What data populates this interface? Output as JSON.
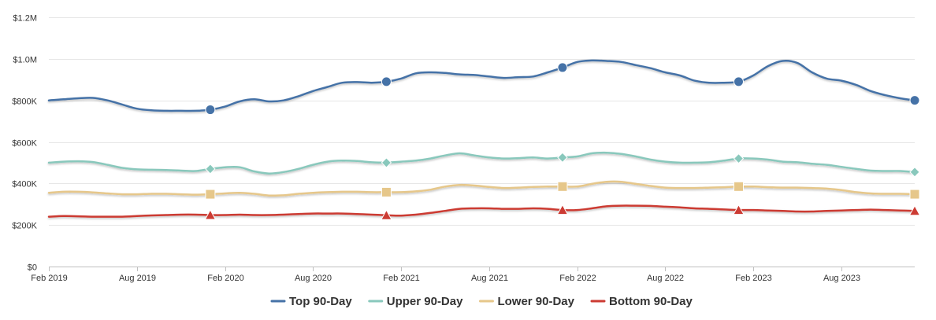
{
  "chart_data": {
    "type": "line",
    "title": "",
    "xlabel": "",
    "ylabel": "",
    "ylim": [
      0,
      1200000
    ],
    "y_ticks": [
      0,
      200000,
      400000,
      600000,
      800000,
      1000000,
      1200000
    ],
    "y_tick_labels": [
      "$0",
      "$200K",
      "$400K",
      "$600K",
      "$800K",
      "$1.0M",
      "$1.2M"
    ],
    "x_ticks": [
      "2019-02",
      "2019-08",
      "2020-02",
      "2020-08",
      "2021-02",
      "2021-08",
      "2022-02",
      "2022-08",
      "2023-02",
      "2023-08"
    ],
    "x_tick_labels": [
      "Feb 2019",
      "Aug 2019",
      "Feb 2020",
      "Aug 2020",
      "Feb 2021",
      "Aug 2021",
      "Feb 2022",
      "Aug 2022",
      "Feb 2023",
      "Aug 2023"
    ],
    "x_range": [
      "2019-02",
      "2024-01"
    ],
    "grid": "horizontal",
    "legend_position": "bottom",
    "series": [
      {
        "name": "Top 90-Day",
        "color": "#4572a7",
        "marker": "circle",
        "markers_at": [
          "2020-01",
          "2021-01",
          "2022-01",
          "2023-01",
          "2024-01"
        ],
        "x": [
          "2019-02",
          "2019-03",
          "2019-04",
          "2019-05",
          "2019-06",
          "2019-07",
          "2019-08",
          "2019-09",
          "2019-10",
          "2019-11",
          "2019-12",
          "2020-01",
          "2020-02",
          "2020-03",
          "2020-04",
          "2020-05",
          "2020-06",
          "2020-07",
          "2020-08",
          "2020-09",
          "2020-10",
          "2020-11",
          "2020-12",
          "2021-01",
          "2021-02",
          "2021-03",
          "2021-04",
          "2021-05",
          "2021-06",
          "2021-07",
          "2021-08",
          "2021-09",
          "2021-10",
          "2021-11",
          "2021-12",
          "2022-01",
          "2022-02",
          "2022-03",
          "2022-04",
          "2022-05",
          "2022-06",
          "2022-07",
          "2022-08",
          "2022-09",
          "2022-10",
          "2022-11",
          "2022-12",
          "2023-01",
          "2023-02",
          "2023-03",
          "2023-04",
          "2023-05",
          "2023-06",
          "2023-07",
          "2023-08",
          "2023-09",
          "2023-10",
          "2023-11",
          "2023-12",
          "2024-01"
        ],
        "values": [
          800000,
          805000,
          810000,
          812000,
          800000,
          780000,
          760000,
          752000,
          750000,
          750000,
          750000,
          755000,
          770000,
          795000,
          805000,
          795000,
          800000,
          820000,
          845000,
          865000,
          885000,
          888000,
          885000,
          890000,
          905000,
          930000,
          935000,
          932000,
          925000,
          922000,
          915000,
          908000,
          912000,
          915000,
          935000,
          958000,
          985000,
          992000,
          990000,
          985000,
          970000,
          955000,
          935000,
          920000,
          895000,
          885000,
          885000,
          890000,
          920000,
          965000,
          990000,
          980000,
          935000,
          905000,
          895000,
          875000,
          845000,
          825000,
          810000,
          800000
        ]
      },
      {
        "name": "Upper 90-Day",
        "color": "#89c8bc",
        "marker": "diamond",
        "markers_at": [
          "2020-01",
          "2021-01",
          "2022-01",
          "2023-01",
          "2024-01"
        ],
        "x": [
          "2019-02",
          "2019-03",
          "2019-04",
          "2019-05",
          "2019-06",
          "2019-07",
          "2019-08",
          "2019-09",
          "2019-10",
          "2019-11",
          "2019-12",
          "2020-01",
          "2020-02",
          "2020-03",
          "2020-04",
          "2020-05",
          "2020-06",
          "2020-07",
          "2020-08",
          "2020-09",
          "2020-10",
          "2020-11",
          "2020-12",
          "2021-01",
          "2021-02",
          "2021-03",
          "2021-04",
          "2021-05",
          "2021-06",
          "2021-07",
          "2021-08",
          "2021-09",
          "2021-10",
          "2021-11",
          "2021-12",
          "2022-01",
          "2022-02",
          "2022-03",
          "2022-04",
          "2022-05",
          "2022-06",
          "2022-07",
          "2022-08",
          "2022-09",
          "2022-10",
          "2022-11",
          "2022-12",
          "2023-01",
          "2023-02",
          "2023-03",
          "2023-04",
          "2023-05",
          "2023-06",
          "2023-07",
          "2023-08",
          "2023-09",
          "2023-10",
          "2023-11",
          "2023-12",
          "2024-01"
        ],
        "values": [
          500000,
          505000,
          507000,
          503000,
          490000,
          475000,
          468000,
          466000,
          465000,
          462000,
          460000,
          470000,
          478000,
          478000,
          458000,
          448000,
          455000,
          470000,
          490000,
          505000,
          510000,
          508000,
          502000,
          500000,
          505000,
          510000,
          520000,
          535000,
          545000,
          535000,
          525000,
          520000,
          522000,
          525000,
          520000,
          525000,
          530000,
          545000,
          548000,
          542000,
          530000,
          515000,
          505000,
          500000,
          500000,
          502000,
          510000,
          520000,
          520000,
          515000,
          505000,
          502000,
          495000,
          490000,
          480000,
          470000,
          462000,
          460000,
          460000,
          455000
        ]
      },
      {
        "name": "Lower 90-Day",
        "color": "#e6c78a",
        "marker": "square",
        "markers_at": [
          "2020-01",
          "2021-01",
          "2022-01",
          "2023-01",
          "2024-01"
        ],
        "x": [
          "2019-02",
          "2019-03",
          "2019-04",
          "2019-05",
          "2019-06",
          "2019-07",
          "2019-08",
          "2019-09",
          "2019-10",
          "2019-11",
          "2019-12",
          "2020-01",
          "2020-02",
          "2020-03",
          "2020-04",
          "2020-05",
          "2020-06",
          "2020-07",
          "2020-08",
          "2020-09",
          "2020-10",
          "2020-11",
          "2020-12",
          "2021-01",
          "2021-02",
          "2021-03",
          "2021-04",
          "2021-05",
          "2021-06",
          "2021-07",
          "2021-08",
          "2021-09",
          "2021-10",
          "2021-11",
          "2021-12",
          "2022-01",
          "2022-02",
          "2022-03",
          "2022-04",
          "2022-05",
          "2022-06",
          "2022-07",
          "2022-08",
          "2022-09",
          "2022-10",
          "2022-11",
          "2022-12",
          "2023-01",
          "2023-02",
          "2023-03",
          "2023-04",
          "2023-05",
          "2023-06",
          "2023-07",
          "2023-08",
          "2023-09",
          "2023-10",
          "2023-11",
          "2023-12",
          "2024-01"
        ],
        "values": [
          355000,
          360000,
          360000,
          357000,
          352000,
          348000,
          348000,
          350000,
          350000,
          348000,
          346000,
          348000,
          352000,
          355000,
          350000,
          342000,
          343000,
          350000,
          355000,
          358000,
          360000,
          360000,
          358000,
          358000,
          358000,
          362000,
          370000,
          385000,
          393000,
          390000,
          383000,
          378000,
          380000,
          383000,
          385000,
          385000,
          385000,
          398000,
          408000,
          408000,
          398000,
          388000,
          380000,
          378000,
          378000,
          380000,
          382000,
          385000,
          385000,
          382000,
          380000,
          380000,
          378000,
          375000,
          368000,
          358000,
          352000,
          350000,
          350000,
          348000
        ]
      },
      {
        "name": "Bottom 90-Day",
        "color": "#cc3b33",
        "marker": "triangle",
        "markers_at": [
          "2020-01",
          "2021-01",
          "2022-01",
          "2023-01",
          "2024-01"
        ],
        "x": [
          "2019-02",
          "2019-03",
          "2019-04",
          "2019-05",
          "2019-06",
          "2019-07",
          "2019-08",
          "2019-09",
          "2019-10",
          "2019-11",
          "2019-12",
          "2020-01",
          "2020-02",
          "2020-03",
          "2020-04",
          "2020-05",
          "2020-06",
          "2020-07",
          "2020-08",
          "2020-09",
          "2020-10",
          "2020-11",
          "2020-12",
          "2021-01",
          "2021-02",
          "2021-03",
          "2021-04",
          "2021-05",
          "2021-06",
          "2021-07",
          "2021-08",
          "2021-09",
          "2021-10",
          "2021-11",
          "2021-12",
          "2022-01",
          "2022-02",
          "2022-03",
          "2022-04",
          "2022-05",
          "2022-06",
          "2022-07",
          "2022-08",
          "2022-09",
          "2022-10",
          "2022-11",
          "2022-12",
          "2023-01",
          "2023-02",
          "2023-03",
          "2023-04",
          "2023-05",
          "2023-06",
          "2023-07",
          "2023-08",
          "2023-09",
          "2023-10",
          "2023-11",
          "2023-12",
          "2024-01"
        ],
        "values": [
          240000,
          243000,
          242000,
          240000,
          240000,
          240000,
          243000,
          246000,
          248000,
          250000,
          250000,
          248000,
          248000,
          250000,
          248000,
          248000,
          250000,
          253000,
          255000,
          255000,
          255000,
          253000,
          250000,
          247000,
          245000,
          250000,
          258000,
          268000,
          278000,
          280000,
          280000,
          278000,
          278000,
          280000,
          278000,
          272000,
          272000,
          280000,
          290000,
          293000,
          293000,
          292000,
          288000,
          285000,
          280000,
          278000,
          275000,
          272000,
          272000,
          270000,
          268000,
          265000,
          265000,
          268000,
          270000,
          272000,
          274000,
          272000,
          270000,
          268000
        ]
      }
    ]
  }
}
